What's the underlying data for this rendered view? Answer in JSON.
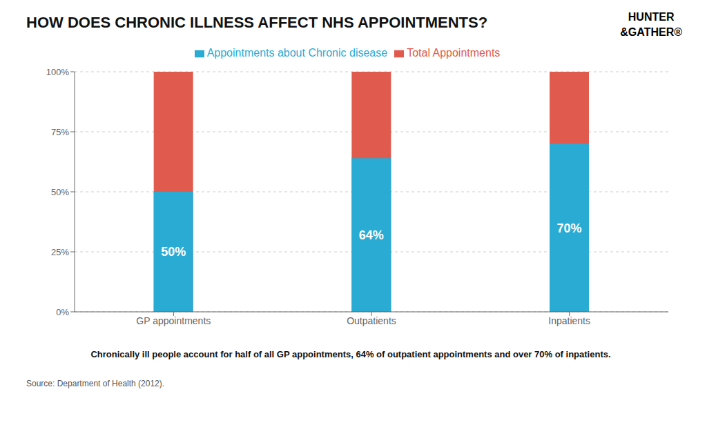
{
  "chart_data": {
    "type": "bar",
    "title": "HOW DOES CHRONIC ILLNESS AFFECT NHS APPOINTMENTS?",
    "categories": [
      "GP appointments",
      "Outpatients",
      "Inpatients"
    ],
    "series": [
      {
        "name": "Total Appointments",
        "color": "#E05A4E",
        "values": [
          100,
          100,
          100
        ]
      },
      {
        "name": "Appointments about Chronic disease",
        "color": "#29ABD4",
        "values": [
          50,
          64,
          70
        ],
        "data_labels": true,
        "value_labels": [
          "50%",
          "64%",
          "70%"
        ]
      }
    ],
    "ylim": [
      0,
      100
    ],
    "yticks": [
      {
        "value": 0,
        "label": "0%"
      },
      {
        "value": 25,
        "label": "25%"
      },
      {
        "value": 50,
        "label": "50%"
      },
      {
        "value": 75,
        "label": "75%"
      },
      {
        "value": 100,
        "label": "100%"
      }
    ],
    "grid": true,
    "legend": "top",
    "annotations": [
      "HUNTER",
      "&GATHER®",
      "Chronically ill people account for half of all GP appointments, 64% of outpatient appointments and over 70% of inpatients.",
      "Source:  Department of Health (2012)."
    ]
  }
}
